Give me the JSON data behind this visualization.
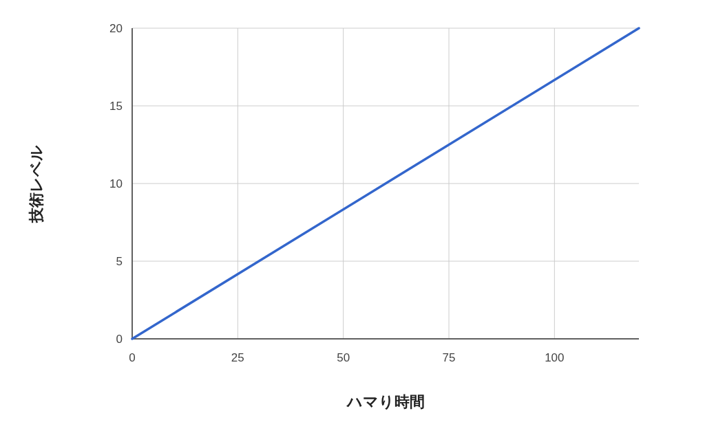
{
  "chart_data": {
    "type": "line",
    "xlabel": "ハマり時間",
    "ylabel": "技術レベル",
    "x": [
      0,
      120
    ],
    "series": [
      {
        "color": "#3366cc",
        "values": [
          0,
          20
        ]
      }
    ],
    "xlim": [
      0,
      120
    ],
    "ylim": [
      0,
      20
    ],
    "xticks": [
      0,
      25,
      50,
      75,
      100
    ],
    "yticks": [
      0,
      5,
      10,
      15,
      20
    ],
    "grid": true
  }
}
